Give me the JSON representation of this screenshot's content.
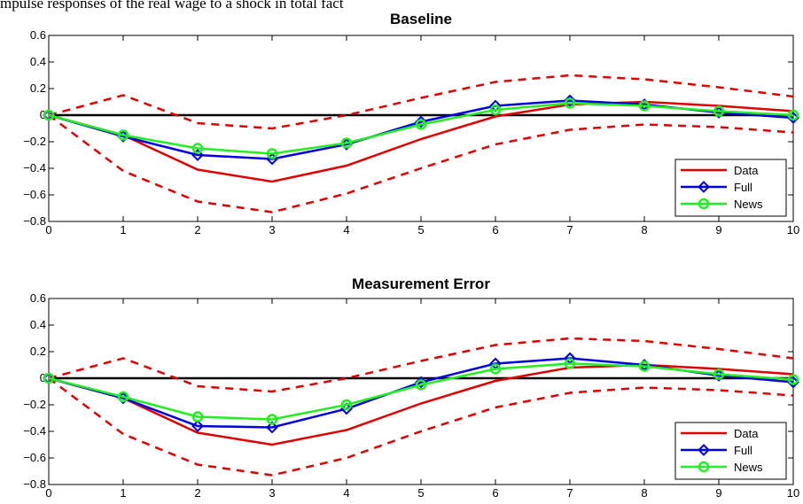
{
  "header_text": "mpulse responses of the real wage to a shock in total fact",
  "colors": {
    "data": "#e00000",
    "full": "#0000e0",
    "news": "#22ee22",
    "zero_line": "#000000"
  },
  "chart_data": [
    {
      "type": "line",
      "title": "Baseline",
      "x": [
        0,
        1,
        2,
        3,
        4,
        5,
        6,
        7,
        8,
        9,
        10
      ],
      "xlim": [
        0,
        10
      ],
      "ylim": [
        -0.8,
        0.6
      ],
      "yticks": [
        -0.8,
        -0.6,
        -0.4,
        -0.2,
        0,
        0.2,
        0.4,
        0.6
      ],
      "ytick_labels": [
        "−0.8",
        "−0.6",
        "−0.4",
        "−0.2",
        "0",
        "0.2",
        "0.4",
        "0.6"
      ],
      "xtick_labels": [
        "0",
        "1",
        "2",
        "3",
        "4",
        "5",
        "6",
        "7",
        "8",
        "9",
        "10"
      ],
      "legend": "bottom-right",
      "series": [
        {
          "name": "Data",
          "values": [
            0,
            -0.15,
            -0.41,
            -0.5,
            -0.38,
            -0.18,
            -0.01,
            0.08,
            0.1,
            0.07,
            0.03
          ]
        },
        {
          "name": "Full",
          "values": [
            0,
            -0.16,
            -0.3,
            -0.33,
            -0.22,
            -0.05,
            0.07,
            0.11,
            0.08,
            0.02,
            -0.02
          ]
        },
        {
          "name": "News",
          "values": [
            0,
            -0.15,
            -0.25,
            -0.29,
            -0.21,
            -0.07,
            0.04,
            0.09,
            0.07,
            0.03,
            0
          ]
        }
      ],
      "bands": {
        "upper": [
          0,
          0.15,
          -0.06,
          -0.1,
          0,
          0.13,
          0.25,
          0.3,
          0.27,
          0.21,
          0.14
        ],
        "lower": [
          0,
          -0.42,
          -0.65,
          -0.73,
          -0.59,
          -0.4,
          -0.22,
          -0.11,
          -0.07,
          -0.09,
          -0.13
        ]
      }
    },
    {
      "type": "line",
      "title": "Measurement Error",
      "x": [
        0,
        1,
        2,
        3,
        4,
        5,
        6,
        7,
        8,
        9,
        10
      ],
      "xlim": [
        0,
        10
      ],
      "ylim": [
        -0.8,
        0.6
      ],
      "yticks": [
        -0.8,
        -0.6,
        -0.4,
        -0.2,
        0,
        0.2,
        0.4,
        0.6
      ],
      "ytick_labels": [
        "−0.8",
        "−0.6",
        "−0.4",
        "−0.2",
        "0",
        "0.2",
        "0.4",
        "0.6"
      ],
      "xtick_labels": [
        "0",
        "1",
        "2",
        "3",
        "4",
        "5",
        "6",
        "7",
        "8",
        "9",
        "10"
      ],
      "legend": "bottom-right",
      "series": [
        {
          "name": "Data",
          "values": [
            0,
            -0.15,
            -0.41,
            -0.5,
            -0.39,
            -0.19,
            -0.02,
            0.08,
            0.1,
            0.07,
            0.03
          ]
        },
        {
          "name": "Full",
          "values": [
            0,
            -0.15,
            -0.36,
            -0.37,
            -0.23,
            -0.03,
            0.11,
            0.15,
            0.1,
            0.02,
            -0.03
          ]
        },
        {
          "name": "News",
          "values": [
            0,
            -0.14,
            -0.29,
            -0.31,
            -0.2,
            -0.05,
            0.07,
            0.11,
            0.09,
            0.03,
            -0.01
          ]
        }
      ],
      "bands": {
        "upper": [
          0,
          0.15,
          -0.06,
          -0.1,
          0,
          0.13,
          0.25,
          0.3,
          0.28,
          0.22,
          0.15
        ],
        "lower": [
          0,
          -0.42,
          -0.65,
          -0.73,
          -0.6,
          -0.4,
          -0.22,
          -0.11,
          -0.07,
          -0.09,
          -0.13
        ]
      }
    }
  ]
}
